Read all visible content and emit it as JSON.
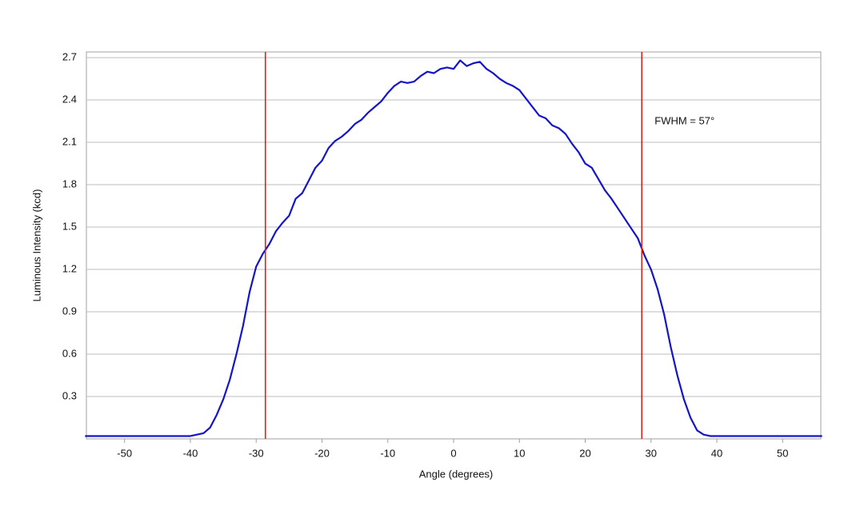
{
  "chart_data": {
    "type": "line",
    "xlabel": "Angle (degrees)",
    "ylabel": "Luminous Intensity (kcd)",
    "annotation": "FWHM = 57°",
    "x": [
      -56,
      -55,
      -54,
      -53,
      -52,
      -51,
      -50,
      -49,
      -48,
      -47,
      -46,
      -45,
      -44,
      -43,
      -42,
      -41,
      -40,
      -39,
      -38,
      -37,
      -36,
      -35,
      -34,
      -33,
      -32,
      -31,
      -30,
      -29,
      -28,
      -27,
      -26,
      -25,
      -24,
      -23,
      -22,
      -21,
      -20,
      -19,
      -18,
      -17,
      -16,
      -15,
      -14,
      -13,
      -12,
      -11,
      -10,
      -9,
      -8,
      -7,
      -6,
      -5,
      -4,
      -3,
      -2,
      -1,
      0,
      1,
      2,
      3,
      4,
      5,
      6,
      7,
      8,
      9,
      10,
      11,
      12,
      13,
      14,
      15,
      16,
      17,
      18,
      19,
      20,
      21,
      22,
      23,
      24,
      25,
      26,
      27,
      28,
      29,
      30,
      31,
      32,
      33,
      34,
      35,
      36,
      37,
      38,
      39,
      40,
      41,
      42,
      43,
      44,
      45,
      46,
      47,
      48,
      49,
      50,
      51,
      52,
      53,
      54,
      55,
      56
    ],
    "series": [
      {
        "name": "Luminous Intensity",
        "color": "#1414c8",
        "values": [
          0.02,
          0.02,
          0.02,
          0.02,
          0.02,
          0.02,
          0.02,
          0.02,
          0.02,
          0.02,
          0.02,
          0.02,
          0.02,
          0.02,
          0.02,
          0.02,
          0.02,
          0.03,
          0.04,
          0.08,
          0.17,
          0.28,
          0.42,
          0.6,
          0.8,
          1.04,
          1.22,
          1.31,
          1.38,
          1.47,
          1.53,
          1.58,
          1.7,
          1.74,
          1.83,
          1.92,
          1.97,
          2.06,
          2.11,
          2.14,
          2.18,
          2.23,
          2.26,
          2.31,
          2.35,
          2.39,
          2.45,
          2.5,
          2.53,
          2.52,
          2.53,
          2.57,
          2.6,
          2.59,
          2.62,
          2.63,
          2.62,
          2.68,
          2.64,
          2.66,
          2.67,
          2.62,
          2.59,
          2.55,
          2.52,
          2.5,
          2.47,
          2.41,
          2.35,
          2.29,
          2.27,
          2.22,
          2.2,
          2.16,
          2.09,
          2.03,
          1.95,
          1.92,
          1.84,
          1.76,
          1.7,
          1.63,
          1.56,
          1.49,
          1.42,
          1.3,
          1.2,
          1.06,
          0.88,
          0.65,
          0.45,
          0.28,
          0.15,
          0.06,
          0.03,
          0.02,
          0.02,
          0.02,
          0.02,
          0.02,
          0.02,
          0.02,
          0.02,
          0.02,
          0.02,
          0.02,
          0.02,
          0.02,
          0.02,
          0.02,
          0.02,
          0.02,
          0.02
        ]
      }
    ],
    "vlines": [
      -28.6,
      28.6
    ],
    "vline_color": "#e0201b",
    "xlim": [
      -55.8,
      55.8
    ],
    "ylim": [
      0,
      2.74
    ],
    "xticks": [
      -50,
      -40,
      -30,
      -20,
      -10,
      0,
      10,
      20,
      30,
      40,
      50
    ],
    "yticks": [
      0.3,
      0.6,
      0.9,
      1.2,
      1.5,
      1.8,
      2.1,
      2.4,
      2.7
    ],
    "grid": true
  }
}
